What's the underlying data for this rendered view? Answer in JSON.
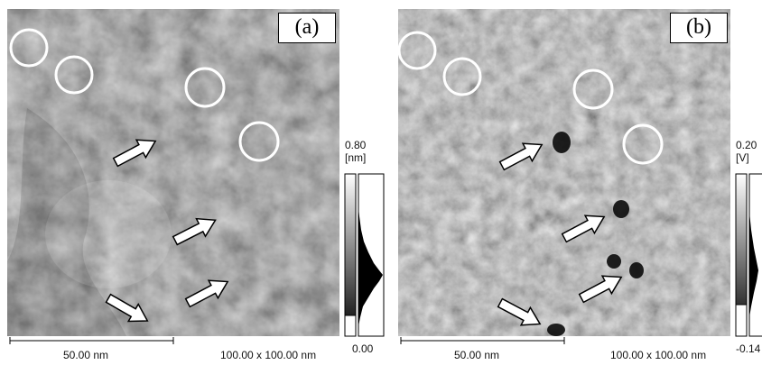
{
  "figure": {
    "panels": [
      {
        "id": "a",
        "label": "(a)",
        "colorbar_max": "0.80",
        "colorbar_unit": "[nm]",
        "colorbar_min": "0.00",
        "scalebar_label": "50.00 nm",
        "scan_size": "100.00 x 100.00 nm"
      },
      {
        "id": "b",
        "label": "(b)",
        "colorbar_max": "0.20",
        "colorbar_unit": "[V]",
        "colorbar_min": "-0.14",
        "scalebar_label": "50.00 nm",
        "scan_size": "100.00 x 100.00 nm"
      }
    ],
    "colors": {
      "circle": "#ffffff",
      "arrow_fill": "#ffffff",
      "arrow_stroke": "#000000"
    }
  }
}
